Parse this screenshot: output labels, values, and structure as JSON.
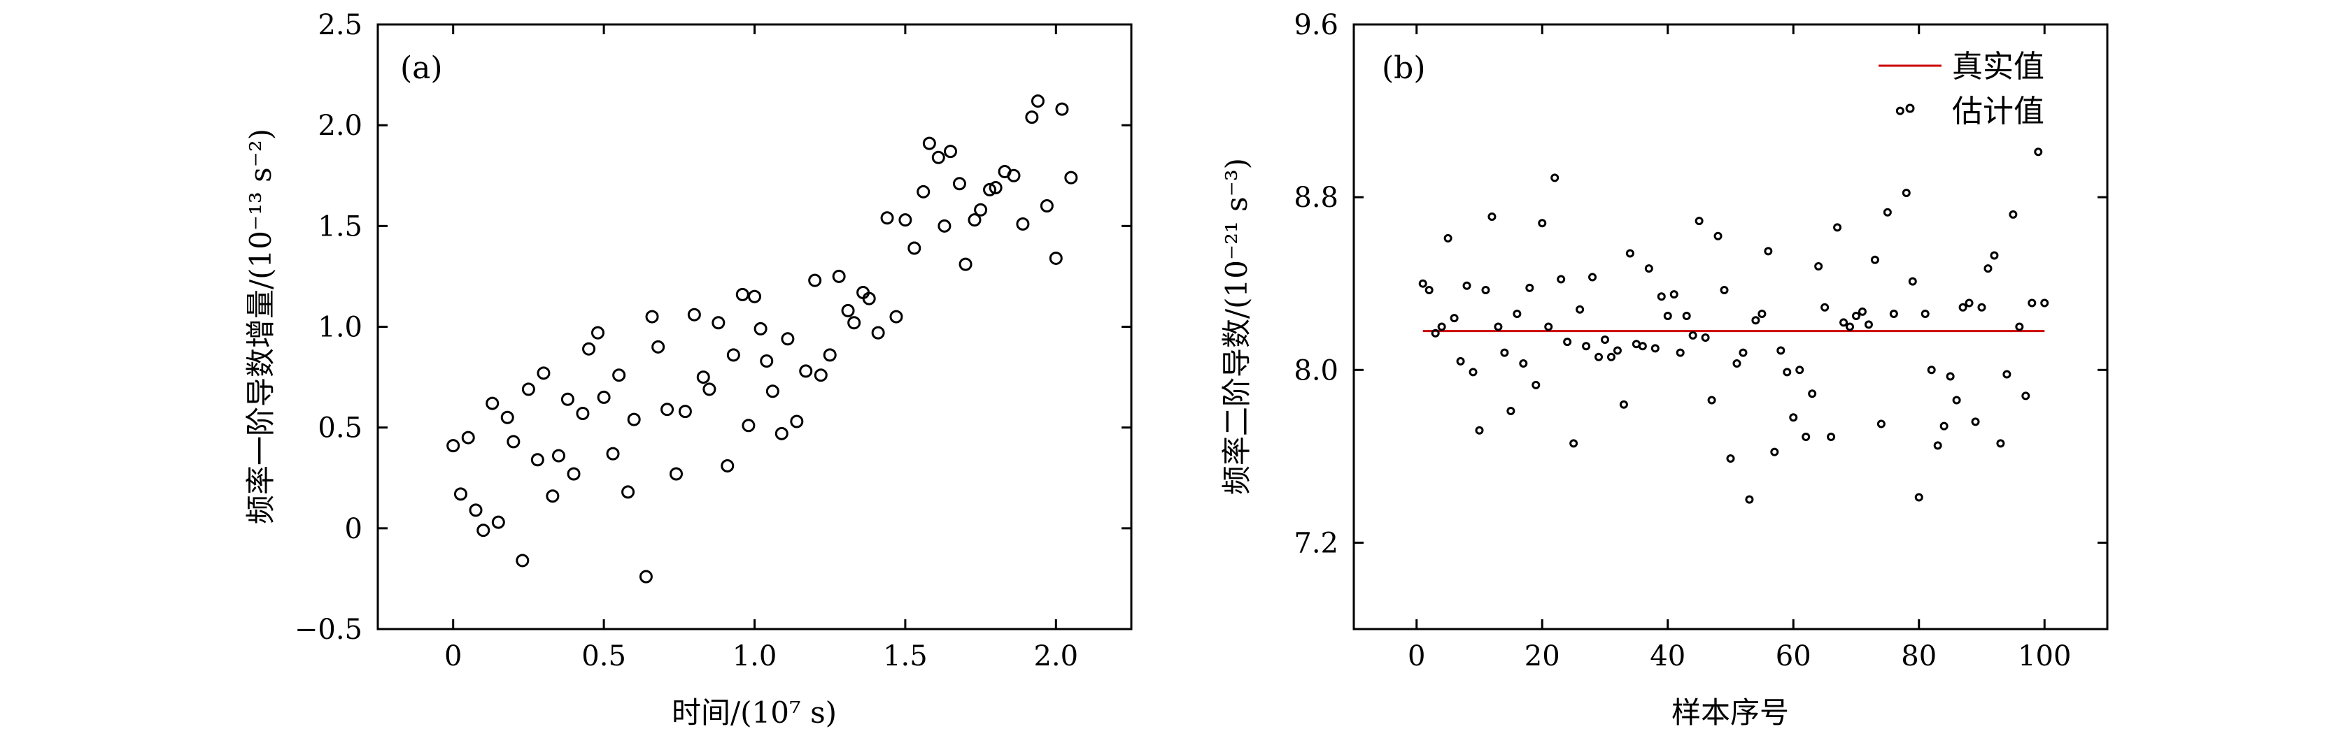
{
  "chart_data": [
    {
      "type": "scatter",
      "panel_label": "(a)",
      "xlabel": "时间/(10⁷ s)",
      "ylabel": "频率一阶导数增量/(10⁻¹³ s⁻²)",
      "xlim": [
        -0.25,
        2.25
      ],
      "ylim": [
        -0.5,
        2.5
      ],
      "x_ticks": [
        0,
        0.5,
        1.0,
        1.5,
        2.0
      ],
      "x_tick_labels": [
        "0",
        "0.5",
        "1.0",
        "1.5",
        "2.0"
      ],
      "y_ticks": [
        -0.5,
        0,
        0.5,
        1.0,
        1.5,
        2.0,
        2.5
      ],
      "y_tick_labels": [
        "−0.5",
        "0",
        "0.5",
        "1.0",
        "1.5",
        "2.0",
        "2.5"
      ],
      "grid": false,
      "marker": "open-circle",
      "points": [
        [
          0.0,
          0.41
        ],
        [
          0.025,
          0.17
        ],
        [
          0.05,
          0.45
        ],
        [
          0.075,
          0.09
        ],
        [
          0.1,
          -0.01
        ],
        [
          0.13,
          0.62
        ],
        [
          0.15,
          0.03
        ],
        [
          0.18,
          0.55
        ],
        [
          0.2,
          0.43
        ],
        [
          0.23,
          -0.16
        ],
        [
          0.25,
          0.69
        ],
        [
          0.28,
          0.34
        ],
        [
          0.3,
          0.77
        ],
        [
          0.33,
          0.16
        ],
        [
          0.35,
          0.36
        ],
        [
          0.38,
          0.64
        ],
        [
          0.4,
          0.27
        ],
        [
          0.43,
          0.57
        ],
        [
          0.45,
          0.89
        ],
        [
          0.48,
          0.97
        ],
        [
          0.5,
          0.65
        ],
        [
          0.53,
          0.37
        ],
        [
          0.55,
          0.76
        ],
        [
          0.58,
          0.18
        ],
        [
          0.6,
          0.54
        ],
        [
          0.64,
          -0.24
        ],
        [
          0.66,
          1.05
        ],
        [
          0.68,
          0.9
        ],
        [
          0.71,
          0.59
        ],
        [
          0.74,
          0.27
        ],
        [
          0.77,
          0.58
        ],
        [
          0.8,
          1.06
        ],
        [
          0.83,
          0.75
        ],
        [
          0.85,
          0.69
        ],
        [
          0.88,
          1.02
        ],
        [
          0.91,
          0.31
        ],
        [
          0.93,
          0.86
        ],
        [
          0.96,
          1.16
        ],
        [
          0.98,
          0.51
        ],
        [
          1.0,
          1.15
        ],
        [
          1.02,
          0.99
        ],
        [
          1.04,
          0.83
        ],
        [
          1.06,
          0.68
        ],
        [
          1.09,
          0.47
        ],
        [
          1.11,
          0.94
        ],
        [
          1.14,
          0.53
        ],
        [
          1.17,
          0.78
        ],
        [
          1.2,
          1.23
        ],
        [
          1.22,
          0.76
        ],
        [
          1.25,
          0.86
        ],
        [
          1.28,
          1.25
        ],
        [
          1.31,
          1.08
        ],
        [
          1.33,
          1.02
        ],
        [
          1.36,
          1.17
        ],
        [
          1.38,
          1.14
        ],
        [
          1.41,
          0.97
        ],
        [
          1.44,
          1.54
        ],
        [
          1.47,
          1.05
        ],
        [
          1.5,
          1.53
        ],
        [
          1.53,
          1.39
        ],
        [
          1.56,
          1.67
        ],
        [
          1.58,
          1.91
        ],
        [
          1.61,
          1.84
        ],
        [
          1.63,
          1.5
        ],
        [
          1.65,
          1.87
        ],
        [
          1.68,
          1.71
        ],
        [
          1.7,
          1.31
        ],
        [
          1.73,
          1.53
        ],
        [
          1.75,
          1.58
        ],
        [
          1.78,
          1.68
        ],
        [
          1.8,
          1.69
        ],
        [
          1.83,
          1.77
        ],
        [
          1.86,
          1.75
        ],
        [
          1.89,
          1.51
        ],
        [
          1.92,
          2.04
        ],
        [
          1.94,
          2.12
        ],
        [
          1.97,
          1.6
        ],
        [
          2.0,
          1.34
        ],
        [
          2.02,
          2.08
        ],
        [
          2.05,
          1.74
        ]
      ]
    },
    {
      "type": "scatter",
      "panel_label": "(b)",
      "xlabel": "样本序号",
      "ylabel": "频率二阶导数/(10⁻²¹ s⁻³)",
      "xlim": [
        -10,
        110
      ],
      "ylim": [
        6.8,
        9.6
      ],
      "x_ticks": [
        0,
        20,
        40,
        60,
        80,
        100
      ],
      "x_tick_labels": [
        "0",
        "20",
        "40",
        "60",
        "80",
        "100"
      ],
      "y_ticks": [
        7.2,
        8.0,
        8.8,
        9.6
      ],
      "y_tick_labels": [
        "7.2",
        "8.0",
        "8.8",
        "9.6"
      ],
      "grid": false,
      "legend": {
        "position": "top-right",
        "entries": [
          "真实值",
          "估计值"
        ]
      },
      "true_value": {
        "name": "真实值",
        "value": 8.18,
        "x_range": [
          1,
          100
        ],
        "color": "#cc0000"
      },
      "estimates": {
        "name": "估计值",
        "x": [
          1,
          2,
          3,
          4,
          5,
          6,
          7,
          8,
          9,
          10,
          11,
          12,
          13,
          14,
          15,
          16,
          17,
          18,
          19,
          20,
          21,
          22,
          23,
          24,
          25,
          26,
          27,
          28,
          29,
          30,
          31,
          32,
          33,
          34,
          35,
          36,
          37,
          38,
          39,
          40,
          41,
          42,
          43,
          44,
          45,
          46,
          47,
          48,
          49,
          50,
          51,
          52,
          53,
          54,
          55,
          56,
          57,
          58,
          59,
          60,
          61,
          62,
          63,
          64,
          65,
          66,
          67,
          68,
          69,
          70,
          71,
          72,
          73,
          74,
          75,
          76,
          77,
          78,
          79,
          80,
          81,
          82,
          83,
          84,
          85,
          86,
          87,
          88,
          89,
          90,
          91,
          92,
          93,
          94,
          95,
          96,
          97,
          98,
          99,
          100
        ],
        "y": [
          8.4,
          8.37,
          8.17,
          8.2,
          8.61,
          8.24,
          8.04,
          8.39,
          7.99,
          7.72,
          8.37,
          8.71,
          8.2,
          8.08,
          7.81,
          8.26,
          8.03,
          8.38,
          7.93,
          8.68,
          8.2,
          8.89,
          8.42,
          8.13,
          7.66,
          8.28,
          8.11,
          8.43,
          8.06,
          8.14,
          8.06,
          8.09,
          7.84,
          8.54,
          8.12,
          8.11,
          8.47,
          8.1,
          8.34,
          8.25,
          8.35,
          8.08,
          8.25,
          8.16,
          8.69,
          8.15,
          7.86,
          8.62,
          8.37,
          7.59,
          8.03,
          8.08,
          7.4,
          8.23,
          8.26,
          8.55,
          7.62,
          8.09,
          7.99,
          7.78,
          8.0,
          7.69,
          7.89,
          8.48,
          8.29,
          7.69,
          8.66,
          8.22,
          8.2,
          8.25,
          8.27,
          8.21,
          8.51,
          7.75,
          8.73,
          8.26,
          9.2,
          8.82,
          8.41,
          7.41,
          8.26,
          8.0,
          7.65,
          7.74,
          7.97,
          7.86,
          8.29,
          8.31,
          7.76,
          8.29,
          8.47,
          8.53,
          7.66,
          7.98,
          8.72,
          8.2,
          7.88,
          8.31,
          9.01,
          8.31
        ]
      }
    }
  ]
}
